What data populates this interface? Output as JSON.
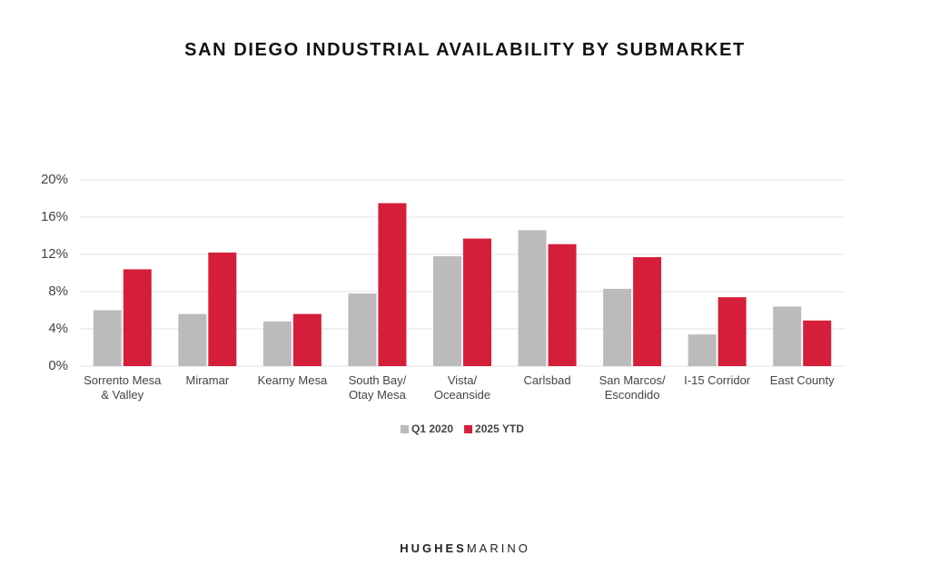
{
  "chart_data": {
    "type": "bar",
    "title": "SAN DIEGO INDUSTRIAL AVAILABILITY BY SUBMARKET",
    "categories": [
      "Sorrento Mesa\n& Valley",
      "Miramar",
      "Kearny Mesa",
      "South Bay/\nOtay Mesa",
      "Vista/\nOceanside",
      "Carlsbad",
      "San Marcos/\nEscondido",
      "I-15 Corridor",
      "East County"
    ],
    "series": [
      {
        "name": "Q1 2020",
        "color": "#bbbbbb",
        "values": [
          6.0,
          5.6,
          4.8,
          7.8,
          11.8,
          14.6,
          8.3,
          3.4,
          6.4
        ]
      },
      {
        "name": "2025 YTD",
        "color": "#d51f3a",
        "values": [
          10.4,
          12.2,
          5.6,
          17.5,
          13.7,
          13.1,
          11.7,
          7.4,
          4.9
        ]
      }
    ],
    "ylim": [
      0,
      20
    ],
    "yticks": [
      {
        "value": 0,
        "label": "0%"
      },
      {
        "value": 4,
        "label": "4%"
      },
      {
        "value": 8,
        "label": "8%"
      },
      {
        "value": 12,
        "label": "12%"
      },
      {
        "value": 16,
        "label": "16%"
      },
      {
        "value": 20,
        "label": "20%"
      }
    ],
    "grid": true,
    "legend": "bottom"
  },
  "brand": {
    "bold": "HUGHES",
    "light": "MARINO"
  }
}
